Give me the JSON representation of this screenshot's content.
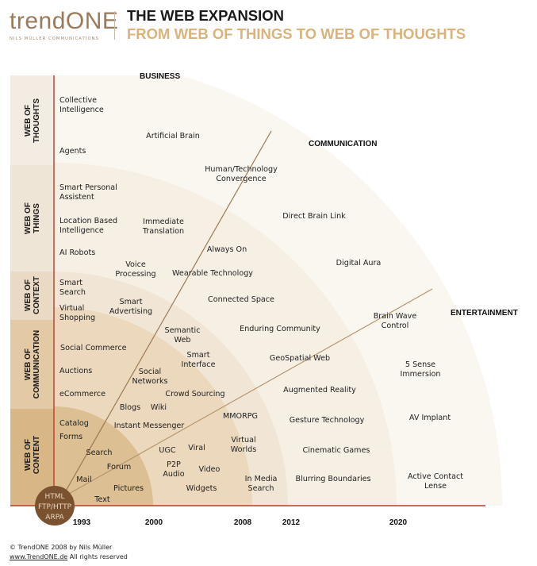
{
  "header": {
    "logo_text": "trendONE",
    "logo_tagline": "NILS MÜLLER COMMUNICATIONS",
    "title_line1": "THE WEB EXPANSION",
    "title_line2": "FROM WEB OF THINGS TO WEB OF THOUGHTS"
  },
  "colors": {
    "axis_red": "#c0392b",
    "ring_content": "#dcbf93",
    "ring_communication": "#ecd9bd",
    "ring_context": "#f1e6d5",
    "ring_things": "#f6efe4",
    "ring_thoughts": "#faf6f0",
    "origin_circle": "#7a5230",
    "title_accent": "#d9b37c"
  },
  "layers": [
    {
      "label": "WEB OF THOUGHTS"
    },
    {
      "label": "WEB OF THINGS"
    },
    {
      "label": "WEB OF CONTEXT"
    },
    {
      "label": "WEB OF COMMUNICATION"
    },
    {
      "label": "WEB OF CONTENT"
    }
  ],
  "sectors": {
    "business": "BUSINESS",
    "communication": "COMMUNICATION",
    "entertainment": "ENTERTAINMENT"
  },
  "years": [
    "1993",
    "2000",
    "2008",
    "2012",
    "2020"
  ],
  "origin_labels": [
    "HTML",
    "FTP/HTTP",
    "ARPA"
  ],
  "items": {
    "collective_intelligence": "Collective\nIntelligence",
    "agents": "Agents",
    "artificial_brain": "Artificial Brain",
    "human_tech": "Human/Technology\nConvergence",
    "smart_personal_assistent": "Smart Personal\nAssistent",
    "location_based": "Location Based\nIntelligence",
    "immediate_translation": "Immediate\nTranslation",
    "direct_brain_link": "Direct Brain Link",
    "ai_robots": "AI Robots",
    "always_on": "Always On",
    "digital_aura": "Digital Aura",
    "voice_processing": "Voice\nProcessing",
    "wearable_technology": "Wearable Technology",
    "smart_search": "Smart\nSearch",
    "smart_advertising": "Smart\nAdvertising",
    "connected_space": "Connected Space",
    "virtual_shopping": "Virtual\nShopping",
    "brain_wave_control": "Brain Wave\nControl",
    "semantic_web": "Semantic\nWeb",
    "enduring_community": "Enduring Community",
    "social_commerce": "Social Commerce",
    "smart_interface": "Smart\nInterface",
    "geospatial_web": "GeoSpatial Web",
    "five_sense_immersion": "5 Sense\nImmersion",
    "auctions": "Auctions",
    "social_networks": "Social\nNetworks",
    "augmented_reality": "Augmented Reality",
    "ecommerce": "eCommerce",
    "crowd_sourcing": "Crowd Sourcing",
    "blogs": "Blogs",
    "wiki": "Wiki",
    "mmorpg": "MMORPG",
    "gesture_technology": "Gesture Technology",
    "av_implant": "AV Implant",
    "catalog": "Catalog",
    "instant_messenger": "Instant Messenger",
    "forms": "Forms",
    "virtual_worlds": "Virtual\nWorlds",
    "search": "Search",
    "ugc": "UGC",
    "viral": "Viral",
    "cinematic_games": "Cinematic Games",
    "forum": "Forum",
    "p2p_audio": "P2P\nAudio",
    "video": "Video",
    "mail": "Mail",
    "in_media_search": "In Media\nSearch",
    "blurring_boundaries": "Blurring Boundaries",
    "active_contact_lense": "Active Contact\nLense",
    "pictures": "Pictures",
    "widgets": "Widgets",
    "text": "Text"
  },
  "footer": {
    "copyright": "© TrendONE 2008 by Nils Müller",
    "website": "www.TrendONE.de",
    "rights": "All rights reserved"
  }
}
